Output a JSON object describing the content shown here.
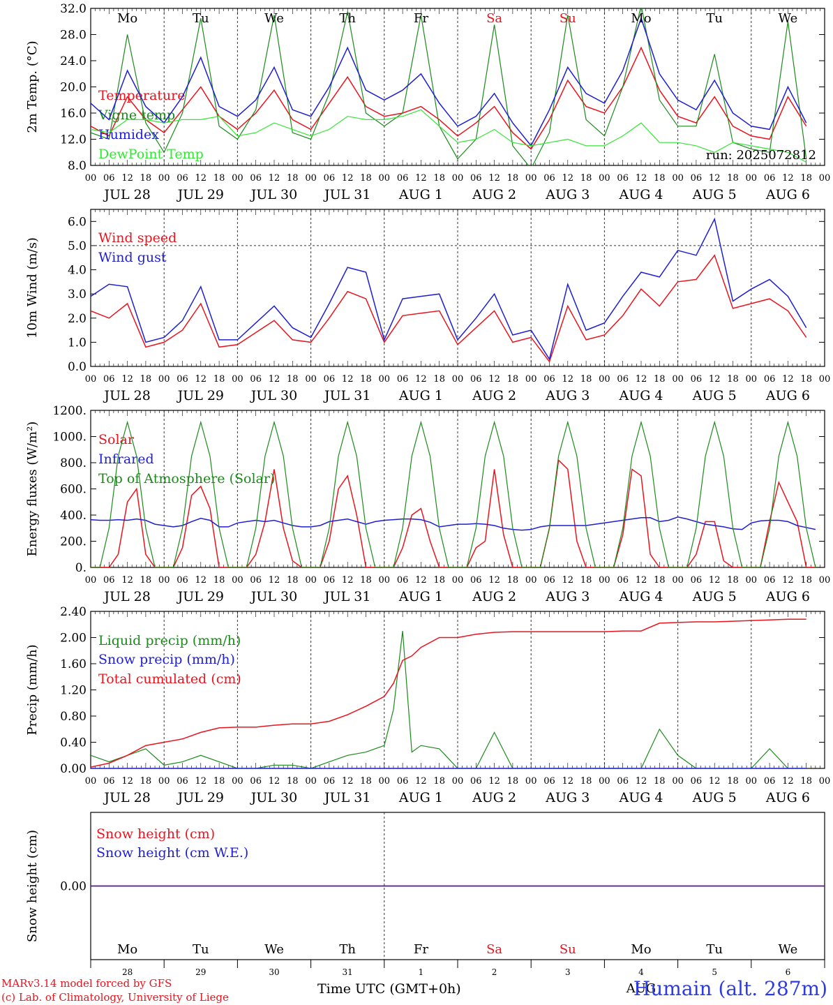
{
  "footer": {
    "credit_line1": "MARv3.14 model forced by GFS",
    "credit_line2": "(c) Lab. of Climatology, University of Liege",
    "station": "Humain (alt. 287m)",
    "x_title": "Time UTC (GMT+0h)"
  },
  "hour_ticks": [
    "00",
    "06",
    "12",
    "18"
  ],
  "day_labels": [
    "JUL 28",
    "JUL 29",
    "JUL 30",
    "JUL 31",
    "AUG  1",
    "AUG  2",
    "AUG  3",
    "AUG  4",
    "AUG  5",
    "AUG  6"
  ],
  "weekdays": [
    {
      "label": "Mo",
      "color": "#000000"
    },
    {
      "label": "Tu",
      "color": "#000000"
    },
    {
      "label": "We",
      "color": "#000000"
    },
    {
      "label": "Th",
      "color": "#000000"
    },
    {
      "label": "Fr",
      "color": "#000000"
    },
    {
      "label": "Sa",
      "color": "#e8141e"
    },
    {
      "label": "Su",
      "color": "#e8141e"
    },
    {
      "label": "Mo",
      "color": "#000000"
    },
    {
      "label": "Tu",
      "color": "#000000"
    },
    {
      "label": "We",
      "color": "#000000"
    }
  ],
  "snow_day_numbers": [
    "28",
    "29",
    "30",
    "31",
    "1",
    "2",
    "3",
    "4",
    "5",
    "6"
  ],
  "snow_bottom_month": "AUG",
  "colors": {
    "red": "#e8141e",
    "green": "#1a8a1a",
    "blue": "#1e1ed2",
    "lightgreen": "#33e633"
  },
  "chart_data": [
    {
      "type": "line",
      "ylabel": "2m Temp. (°C)",
      "ylim": [
        8,
        32
      ],
      "yticks": [
        "8.0",
        "12.0",
        "16.0",
        "20.0",
        "24.0",
        "28.0",
        "32.0"
      ],
      "run_label": "run: 2025072812",
      "x_hours": [
        0,
        6,
        12,
        18,
        24,
        30,
        36,
        42,
        48,
        54,
        60,
        66,
        72,
        78,
        84,
        90,
        96,
        102,
        108,
        114,
        120,
        126,
        132,
        138,
        144,
        150,
        156,
        162,
        168,
        174,
        180,
        186,
        192,
        198,
        204,
        210,
        216,
        222,
        228,
        234
      ],
      "series": [
        {
          "name": "Temperature",
          "color": "red",
          "values": [
            14.0,
            12.5,
            18.5,
            15.0,
            13.0,
            16.5,
            20.0,
            15.5,
            13.5,
            16.0,
            19.5,
            15.0,
            13.5,
            17.5,
            21.5,
            17.0,
            15.5,
            16.0,
            17.0,
            15.0,
            12.5,
            14.5,
            17.0,
            13.0,
            10.5,
            15.0,
            21.0,
            17.0,
            16.0,
            20.0,
            26.0,
            19.5,
            15.5,
            14.5,
            18.5,
            14.0,
            12.5,
            12.0,
            18.5,
            14.0
          ]
        },
        {
          "name": "Vigne temp",
          "color": "green",
          "values": [
            13.0,
            12.0,
            28.0,
            14.5,
            10.0,
            16.0,
            30.5,
            14.0,
            12.0,
            16.5,
            31.0,
            13.0,
            12.0,
            19.0,
            31.5,
            16.0,
            14.0,
            16.0,
            31.0,
            14.0,
            9.0,
            12.0,
            29.5,
            11.0,
            7.5,
            13.0,
            31.0,
            15.0,
            12.5,
            20.0,
            32.5,
            18.0,
            14.0,
            14.0,
            25.0,
            11.5,
            10.5,
            10.0,
            30.0,
            9.0
          ]
        },
        {
          "name": "Humidex",
          "color": "blue",
          "values": [
            17.5,
            15.0,
            22.5,
            17.0,
            14.5,
            18.5,
            24.5,
            17.0,
            15.5,
            18.0,
            23.0,
            16.5,
            15.5,
            20.0,
            26.0,
            19.5,
            18.0,
            19.5,
            22.0,
            17.5,
            14.0,
            15.5,
            19.0,
            14.5,
            11.0,
            16.5,
            23.0,
            19.0,
            17.5,
            22.5,
            30.5,
            22.0,
            18.0,
            16.5,
            21.0,
            16.0,
            14.0,
            13.5,
            20.0,
            14.5
          ]
        },
        {
          "name": "DewPoint Temp",
          "color": "lightgreen",
          "values": [
            13.5,
            13.0,
            15.0,
            15.0,
            14.5,
            15.0,
            15.0,
            15.5,
            12.5,
            13.0,
            14.5,
            13.5,
            12.5,
            13.5,
            15.5,
            15.0,
            15.0,
            15.5,
            16.5,
            14.0,
            11.5,
            12.0,
            13.5,
            11.5,
            11.0,
            11.5,
            12.0,
            11.0,
            11.0,
            12.5,
            14.5,
            11.5,
            11.5,
            11.0,
            10.0,
            11.5,
            11.0,
            10.5,
            10.0,
            8.5
          ]
        }
      ]
    },
    {
      "type": "line",
      "ylabel": "10m Wind (m/s)",
      "ylim": [
        0,
        6.5
      ],
      "yticks": [
        "0.0",
        "1.0",
        "2.0",
        "3.0",
        "4.0",
        "5.0",
        "6.0"
      ],
      "reference_line": 5.0,
      "x_hours": [
        0,
        6,
        12,
        18,
        24,
        30,
        36,
        42,
        48,
        54,
        60,
        66,
        72,
        78,
        84,
        90,
        96,
        102,
        108,
        114,
        120,
        126,
        132,
        138,
        144,
        150,
        156,
        162,
        168,
        174,
        180,
        186,
        192,
        198,
        204,
        210,
        216,
        222,
        228,
        234
      ],
      "series": [
        {
          "name": "Wind speed",
          "color": "red",
          "values": [
            2.3,
            2.0,
            2.6,
            0.8,
            1.0,
            1.5,
            2.6,
            0.8,
            0.9,
            1.4,
            1.9,
            1.1,
            1.0,
            2.0,
            3.1,
            2.8,
            1.0,
            2.1,
            2.2,
            2.3,
            0.9,
            1.6,
            2.3,
            1.0,
            1.2,
            0.2,
            2.5,
            1.1,
            1.3,
            2.1,
            3.2,
            2.5,
            3.5,
            3.6,
            4.6,
            2.4,
            2.6,
            2.8,
            2.3,
            1.2
          ]
        },
        {
          "name": "Wind gust",
          "color": "blue",
          "values": [
            2.9,
            3.4,
            3.3,
            1.0,
            1.2,
            1.9,
            3.3,
            1.1,
            1.1,
            1.8,
            2.5,
            1.6,
            1.2,
            2.6,
            4.1,
            3.9,
            1.1,
            2.8,
            2.9,
            3.0,
            1.1,
            2.0,
            3.0,
            1.3,
            1.5,
            0.3,
            3.4,
            1.5,
            1.8,
            2.9,
            3.9,
            3.7,
            4.8,
            4.6,
            6.1,
            2.7,
            3.2,
            3.6,
            2.9,
            1.6
          ]
        }
      ]
    },
    {
      "type": "line",
      "ylabel": "Energy fluxes (W/m²)",
      "ylim": [
        0,
        1200
      ],
      "yticks": [
        "0.",
        "200.",
        "400.",
        "600.",
        "800.",
        "1000.",
        "1200."
      ],
      "x_hours": [
        0,
        3,
        6,
        9,
        12,
        15,
        18,
        21,
        24,
        27,
        30,
        33,
        36,
        39,
        42,
        45,
        48,
        51,
        54,
        57,
        60,
        63,
        66,
        69,
        72,
        75,
        78,
        81,
        84,
        87,
        90,
        93,
        96,
        99,
        102,
        105,
        108,
        111,
        114,
        117,
        120,
        123,
        126,
        129,
        132,
        135,
        138,
        141,
        144,
        147,
        150,
        153,
        156,
        159,
        162,
        165,
        168,
        171,
        174,
        177,
        180,
        183,
        186,
        189,
        192,
        195,
        198,
        201,
        204,
        207,
        210,
        213,
        216,
        219,
        222,
        225,
        228,
        231,
        234,
        237
      ],
      "series": [
        {
          "name": "Solar",
          "color": "red",
          "values": [
            0,
            0,
            0,
            100,
            500,
            600,
            100,
            0,
            0,
            0,
            150,
            550,
            620,
            450,
            0,
            0,
            0,
            0,
            100,
            350,
            750,
            300,
            50,
            0,
            0,
            0,
            200,
            600,
            700,
            400,
            0,
            0,
            0,
            0,
            150,
            400,
            450,
            200,
            0,
            0,
            0,
            0,
            150,
            200,
            750,
            250,
            0,
            0,
            0,
            0,
            300,
            820,
            750,
            200,
            0,
            0,
            0,
            0,
            250,
            750,
            700,
            100,
            0,
            0,
            0,
            0,
            100,
            350,
            350,
            50,
            0,
            0,
            0,
            0,
            350,
            650,
            500,
            350,
            0,
            0
          ]
        },
        {
          "name": "Infrared",
          "color": "blue",
          "values": [
            365,
            360,
            360,
            365,
            360,
            370,
            360,
            330,
            320,
            310,
            320,
            350,
            375,
            360,
            310,
            310,
            340,
            350,
            360,
            350,
            360,
            340,
            320,
            310,
            310,
            320,
            350,
            360,
            370,
            350,
            330,
            350,
            360,
            365,
            370,
            370,
            365,
            345,
            310,
            320,
            330,
            330,
            335,
            330,
            320,
            300,
            290,
            285,
            290,
            310,
            320,
            320,
            320,
            320,
            320,
            330,
            340,
            350,
            360,
            370,
            380,
            380,
            350,
            360,
            385,
            370,
            350,
            330,
            320,
            310,
            295,
            290,
            340,
            355,
            360,
            360,
            350,
            320,
            305,
            290
          ]
        },
        {
          "name": "Top of Atmosphere (Solar)",
          "color": "green",
          "values": [
            0,
            0,
            300,
            850,
            1110,
            850,
            300,
            0,
            0,
            0,
            300,
            850,
            1110,
            850,
            300,
            0,
            0,
            0,
            300,
            850,
            1110,
            850,
            300,
            0,
            0,
            0,
            300,
            850,
            1110,
            850,
            300,
            0,
            0,
            0,
            300,
            850,
            1110,
            850,
            300,
            0,
            0,
            0,
            300,
            850,
            1110,
            850,
            300,
            0,
            0,
            0,
            300,
            850,
            1110,
            850,
            300,
            0,
            0,
            0,
            300,
            850,
            1110,
            850,
            300,
            0,
            0,
            0,
            300,
            850,
            1110,
            850,
            300,
            0,
            0,
            0,
            300,
            850,
            1110,
            850,
            300,
            0
          ]
        }
      ]
    },
    {
      "type": "line",
      "ylabel": "Precip (mm/h)",
      "ylim": [
        0,
        2.4
      ],
      "yticks": [
        "0.00",
        "0.40",
        "0.80",
        "1.20",
        "1.60",
        "2.00",
        "2.40"
      ],
      "x_hours": [
        0,
        6,
        12,
        18,
        24,
        30,
        36,
        42,
        48,
        54,
        60,
        66,
        72,
        78,
        84,
        90,
        96,
        99,
        102,
        105,
        108,
        114,
        120,
        126,
        132,
        138,
        144,
        150,
        156,
        162,
        168,
        174,
        180,
        186,
        192,
        198,
        204,
        210,
        216,
        222,
        228,
        234
      ],
      "series": [
        {
          "name": "Liquid precip (mm/h)",
          "color": "green",
          "values": [
            0.2,
            0.1,
            0.2,
            0.3,
            0.05,
            0.1,
            0.2,
            0.1,
            0.0,
            0.0,
            0.05,
            0.05,
            0.0,
            0.1,
            0.2,
            0.25,
            0.35,
            0.9,
            2.1,
            0.25,
            0.35,
            0.3,
            0.0,
            0.0,
            0.55,
            0.0,
            0.0,
            0.0,
            0.0,
            0.0,
            0.0,
            0.0,
            0.0,
            0.6,
            0.2,
            0.0,
            0.0,
            0.0,
            0.0,
            0.3,
            0.0,
            0.0
          ]
        },
        {
          "name": "Snow precip (mm/h)",
          "color": "blue",
          "values": [
            0,
            0,
            0,
            0,
            0,
            0,
            0,
            0,
            0,
            0,
            0,
            0,
            0,
            0,
            0,
            0,
            0,
            0,
            0,
            0,
            0,
            0,
            0,
            0,
            0,
            0,
            0,
            0,
            0,
            0,
            0,
            0,
            0,
            0,
            0,
            0,
            0,
            0,
            0,
            0,
            0,
            0
          ]
        },
        {
          "name": "Total cumulated (cm)",
          "color": "red",
          "values": [
            0.02,
            0.08,
            0.2,
            0.35,
            0.4,
            0.45,
            0.55,
            0.62,
            0.63,
            0.63,
            0.66,
            0.68,
            0.68,
            0.72,
            0.82,
            0.95,
            1.1,
            1.3,
            1.65,
            1.72,
            1.85,
            2.0,
            2.0,
            2.05,
            2.08,
            2.09,
            2.09,
            2.09,
            2.09,
            2.09,
            2.09,
            2.1,
            2.1,
            2.22,
            2.23,
            2.24,
            2.24,
            2.25,
            2.26,
            2.27,
            2.28,
            2.28
          ]
        }
      ]
    },
    {
      "type": "line",
      "ylabel": "Snow height (cm)",
      "ylim": [
        -1,
        1
      ],
      "yticks": [
        "0.00"
      ],
      "x_hours": [
        0,
        240
      ],
      "series": [
        {
          "name": "Snow height (cm)",
          "color": "red",
          "values": [
            0,
            0
          ]
        },
        {
          "name": "Snow height (cm W.E.)",
          "color": "blue",
          "values": [
            0,
            0
          ]
        }
      ]
    }
  ]
}
